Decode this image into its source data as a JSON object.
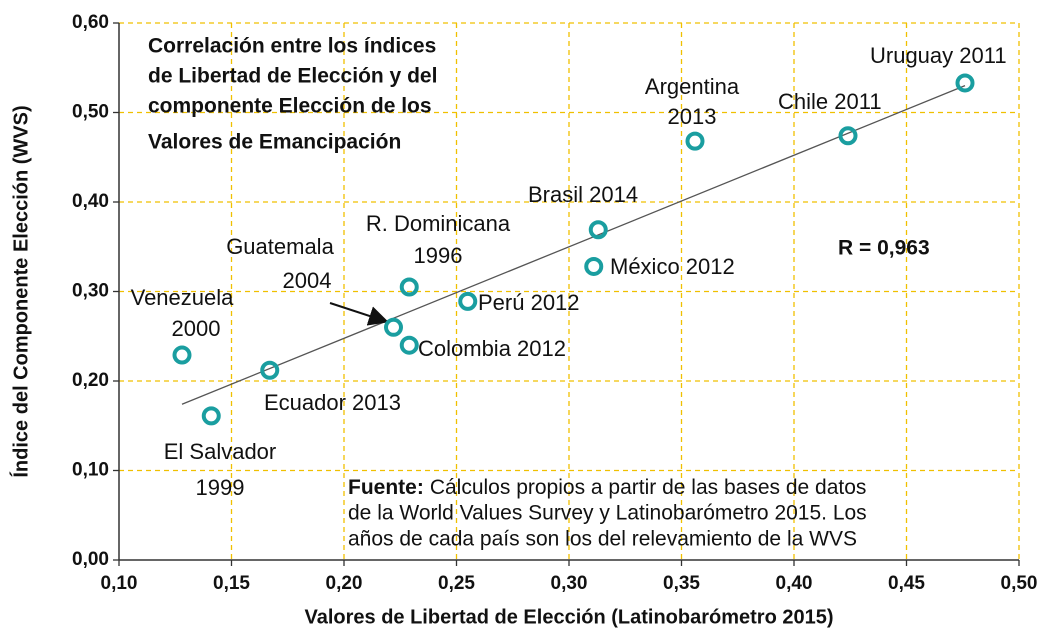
{
  "chart_data": {
    "type": "scatter",
    "title": [
      "Correlación entre los índices",
      "de Libertad de Elección y del",
      "componente Elección de los",
      "Valores de Emancipación"
    ],
    "x_label": "Valores de Libertad de Elección (Latinobarómetro 2015)",
    "y_label": "Índice del Componente Elección (WVS)",
    "annotation": "R = 0,963",
    "source": {
      "bold": "Fuente:",
      "lines": [
        "Cálculos propios a partir de las bases de datos",
        "de la World Values Survey y Latinobarómetro 2015. Los",
        "años de cada país son los del relevamiento de la WVS"
      ]
    },
    "series": [
      {
        "color": "#1a9ea0",
        "x": [
          0.476,
          0.424,
          0.356,
          0.313,
          0.311,
          0.255,
          0.229,
          0.222,
          0.229,
          0.128,
          0.167,
          0.141
        ],
        "values": [
          0.533,
          0.474,
          0.468,
          0.369,
          0.328,
          0.289,
          0.305,
          0.26,
          0.24,
          0.229,
          0.212,
          0.161
        ],
        "labels": [
          [
            "Uruguay 2011"
          ],
          [
            "Chile 2011"
          ],
          [
            "Argentina",
            "2013"
          ],
          [
            "Brasil 2014"
          ],
          [
            "México 2012"
          ],
          [
            "Perú 2012"
          ],
          [
            "R. Dominicana",
            "1996"
          ],
          [
            "Guatemala",
            "2004"
          ],
          [
            "Colombia 2012"
          ],
          [
            "Venezuela",
            "2000"
          ],
          [
            "Ecuador 2013"
          ],
          [
            "El Salvador",
            "1999"
          ]
        ]
      }
    ],
    "trendline": {
      "color": "#555555",
      "x": [
        0.128,
        0.476
      ],
      "y": [
        0.174,
        0.53
      ]
    },
    "xlim": [
      0.1,
      0.5
    ],
    "ylim": [
      0,
      0.6
    ],
    "xticks": [
      {
        "value": 0.1,
        "label": "0,10"
      },
      {
        "value": 0.15,
        "label": "0,15"
      },
      {
        "value": 0.2,
        "label": "0,20"
      },
      {
        "value": 0.25,
        "label": "0,25"
      },
      {
        "value": 0.3,
        "label": "0,30"
      },
      {
        "value": 0.35,
        "label": "0,35"
      },
      {
        "value": 0.4,
        "label": "0,40"
      },
      {
        "value": 0.45,
        "label": "0,45"
      },
      {
        "value": 0.5,
        "label": "0,50"
      }
    ],
    "yticks": [
      {
        "value": 0,
        "label": "0,00"
      },
      {
        "value": 0.1,
        "label": "0,10"
      },
      {
        "value": 0.2,
        "label": "0,20"
      },
      {
        "value": 0.3,
        "label": "0,30"
      },
      {
        "value": 0.4,
        "label": "0,40"
      },
      {
        "value": 0.5,
        "label": "0,50"
      },
      {
        "value": 0.6,
        "label": "0,60"
      }
    ],
    "grid": true,
    "grid_color": "#f0c000"
  }
}
